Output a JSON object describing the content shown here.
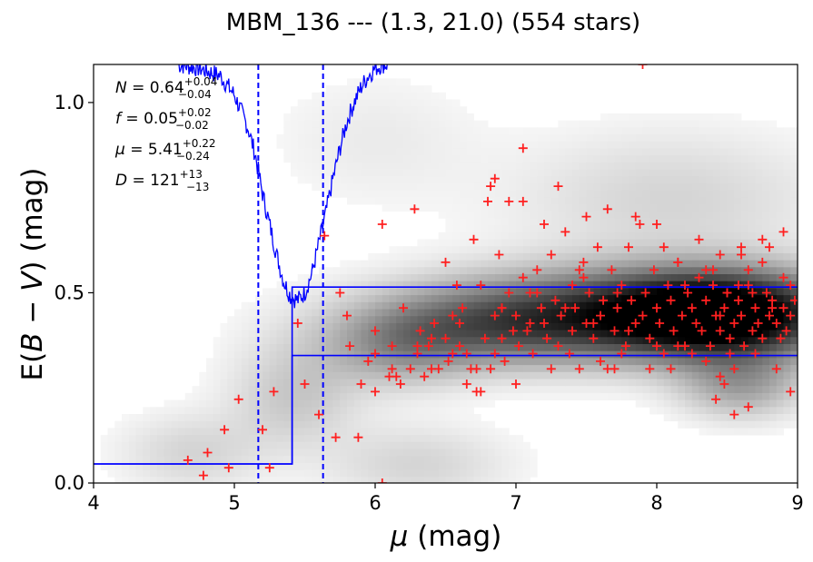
{
  "chart_data": {
    "type": "scatter",
    "title": "MBM_136 --- (1.3, 21.0) (554 stars)",
    "xlabel": {
      "pre": "",
      "italic": "μ",
      "post": " (mag)"
    },
    "ylabel": {
      "pre": "E(",
      "italic1": "B",
      "mid": " − ",
      "italic2": "V",
      "post": ") (mag)"
    },
    "xlim": [
      4,
      9
    ],
    "ylim": [
      0,
      1.1
    ],
    "xticks": [
      {
        "value": 4,
        "label": "4"
      },
      {
        "value": 5,
        "label": "5"
      },
      {
        "value": 6,
        "label": "6"
      },
      {
        "value": 7,
        "label": "7"
      },
      {
        "value": 8,
        "label": "8"
      },
      {
        "value": 9,
        "label": "9"
      }
    ],
    "yticks": [
      {
        "value": 0.0,
        "label": "0.0"
      },
      {
        "value": 0.5,
        "label": "0.5"
      },
      {
        "value": 1.0,
        "label": "1.0"
      }
    ],
    "grid": false,
    "annotations": [
      {
        "name": "N",
        "label": "N",
        "eq": " = ",
        "value": "0.64",
        "upper": "+0.04",
        "lower": "−0.04"
      },
      {
        "name": "f",
        "label": "f",
        "eq": " = ",
        "value": "0.05",
        "upper": "+0.02",
        "lower": "−0.02"
      },
      {
        "name": "mu",
        "label": "μ",
        "eq": " = ",
        "value": "5.41",
        "upper": "+0.22",
        "lower": "−0.24"
      },
      {
        "name": "D",
        "label": "D",
        "eq": " = ",
        "value": "121",
        "upper": "+13",
        "lower": "−13"
      }
    ],
    "vertical_dashed_lines": [
      5.17,
      5.63
    ],
    "colors": {
      "stars": "#ff2020",
      "model": "#0000ff",
      "density": "#000000"
    },
    "density_blobs": [
      {
        "x": 8.45,
        "y": 0.44,
        "sx": 0.55,
        "sy": 0.075,
        "w": 1.0
      },
      {
        "x": 7.8,
        "y": 0.45,
        "sx": 0.9,
        "sy": 0.08,
        "w": 0.55
      },
      {
        "x": 6.9,
        "y": 0.41,
        "sx": 0.6,
        "sy": 0.07,
        "w": 0.42
      },
      {
        "x": 6.2,
        "y": 0.36,
        "sx": 0.35,
        "sy": 0.07,
        "w": 0.28
      },
      {
        "x": 8.6,
        "y": 0.26,
        "sx": 0.3,
        "sy": 0.06,
        "w": 0.3
      },
      {
        "x": 8.1,
        "y": 0.75,
        "sx": 0.75,
        "sy": 0.12,
        "w": 0.12
      },
      {
        "x": 5.5,
        "y": 0.3,
        "sx": 0.35,
        "sy": 0.1,
        "w": 0.1
      },
      {
        "x": 4.7,
        "y": 0.08,
        "sx": 0.35,
        "sy": 0.07,
        "w": 0.12
      },
      {
        "x": 6.3,
        "y": 0.05,
        "sx": 0.45,
        "sy": 0.07,
        "w": 0.12
      },
      {
        "x": 5.4,
        "y": 0.2,
        "sx": 0.3,
        "sy": 0.08,
        "w": 0.1
      },
      {
        "x": 6.0,
        "y": 0.9,
        "sx": 0.5,
        "sy": 0.12,
        "w": 0.05
      }
    ],
    "model_step": {
      "x": [
        4.0,
        5.41,
        5.41,
        9.0
      ],
      "lower": [
        0.05,
        0.05,
        0.335,
        0.335
      ],
      "upper": [
        0.05,
        0.05,
        0.515,
        0.515
      ]
    },
    "model_curve": {
      "x": [
        4.6,
        4.75,
        4.9,
        5.0,
        5.1,
        5.15,
        5.2,
        5.25,
        5.3,
        5.35,
        5.4,
        5.45,
        5.5,
        5.55,
        5.6,
        5.65,
        5.7,
        5.75,
        5.8,
        5.85,
        5.9,
        5.95,
        6.0,
        6.05,
        6.1
      ],
      "y": [
        1.1,
        1.09,
        1.07,
        1.02,
        0.93,
        0.86,
        0.76,
        0.68,
        0.6,
        0.53,
        0.49,
        0.48,
        0.5,
        0.55,
        0.63,
        0.71,
        0.8,
        0.88,
        0.95,
        1.0,
        1.04,
        1.07,
        1.09,
        1.1,
        1.1
      ]
    },
    "stars": {
      "x": [
        4.67,
        4.78,
        4.81,
        4.93,
        4.96,
        5.03,
        5.2,
        5.25,
        5.28,
        5.45,
        5.5,
        5.6,
        5.64,
        5.72,
        5.75,
        5.8,
        5.82,
        5.88,
        5.9,
        6.0,
        6.0,
        6.0,
        6.05,
        6.12,
        6.12,
        6.15,
        6.18,
        6.2,
        6.25,
        6.28,
        6.3,
        6.32,
        6.35,
        6.38,
        6.4,
        6.42,
        6.45,
        6.5,
        6.5,
        6.52,
        6.55,
        6.58,
        6.6,
        6.62,
        6.65,
        6.68,
        6.7,
        6.72,
        6.75,
        6.75,
        6.78,
        6.8,
        6.82,
        6.85,
        6.85,
        6.88,
        6.9,
        6.9,
        6.92,
        6.95,
        6.98,
        7.0,
        7.02,
        7.05,
        7.05,
        7.08,
        7.1,
        7.12,
        7.15,
        7.18,
        7.2,
        7.22,
        7.25,
        7.28,
        7.3,
        7.32,
        7.35,
        7.38,
        7.4,
        7.42,
        7.45,
        7.48,
        7.5,
        7.52,
        7.55,
        7.58,
        7.6,
        7.62,
        7.65,
        7.68,
        7.7,
        7.72,
        7.75,
        7.78,
        7.8,
        7.82,
        7.85,
        7.88,
        7.9,
        7.92,
        7.95,
        7.98,
        8.0,
        8.02,
        8.05,
        8.08,
        8.1,
        8.12,
        8.15,
        8.18,
        8.2,
        8.22,
        8.25,
        8.28,
        8.3,
        8.32,
        8.35,
        8.38,
        8.4,
        8.42,
        8.45,
        8.48,
        8.5,
        8.52,
        8.55,
        8.58,
        8.6,
        8.62,
        8.65,
        8.68,
        8.7,
        8.72,
        8.75,
        8.78,
        8.8,
        8.82,
        8.85,
        8.88,
        8.9,
        8.92,
        8.95,
        8.98,
        7.2,
        7.3,
        7.5,
        7.65,
        7.85,
        8.0,
        8.15,
        8.3,
        8.45,
        8.6,
        8.75,
        8.9,
        8.55,
        8.65,
        8.42,
        8.48,
        7.9,
        6.85,
        6.95,
        7.05,
        6.82,
        6.6,
        6.4,
        6.05,
        7.95,
        8.35,
        8.45,
        8.55,
        8.7,
        8.85,
        8.95,
        7.15,
        7.4,
        7.6,
        7.75,
        8.1,
        8.25,
        6.72,
        6.55,
        6.3,
        6.1,
        5.95,
        8.05,
        8.4,
        8.6,
        8.8,
        7.0,
        7.25,
        7.45,
        7.7,
        8.2,
        8.5,
        8.65,
        8.75,
        8.9,
        6.65,
        6.9,
        7.35,
        7.55,
        7.8,
        8.0,
        8.35,
        8.52,
        8.68,
        8.82,
        8.95,
        7.1,
        7.48,
        7.72,
        8.15,
        8.45,
        8.58
      ],
      "y": [
        0.06,
        0.02,
        0.08,
        0.14,
        0.04,
        0.22,
        0.14,
        0.04,
        0.24,
        0.42,
        0.26,
        0.18,
        0.65,
        0.12,
        0.5,
        0.44,
        0.36,
        0.12,
        0.26,
        0.4,
        0.34,
        0.24,
        0.0,
        0.3,
        0.36,
        0.28,
        0.26,
        0.46,
        0.3,
        0.72,
        0.34,
        0.4,
        0.28,
        0.36,
        0.3,
        0.42,
        0.3,
        0.38,
        0.58,
        0.32,
        0.44,
        0.52,
        0.36,
        0.46,
        0.34,
        0.3,
        0.64,
        0.3,
        0.52,
        0.24,
        0.38,
        0.74,
        0.3,
        0.44,
        0.34,
        0.6,
        0.46,
        0.38,
        0.32,
        0.5,
        0.4,
        0.44,
        0.36,
        0.88,
        0.54,
        0.4,
        0.5,
        0.34,
        0.56,
        0.46,
        0.42,
        0.38,
        0.6,
        0.48,
        0.36,
        0.44,
        0.66,
        0.34,
        0.52,
        0.46,
        0.3,
        0.58,
        0.42,
        0.5,
        0.38,
        0.62,
        0.44,
        0.48,
        0.3,
        0.56,
        0.4,
        0.46,
        0.52,
        0.36,
        0.62,
        0.48,
        0.42,
        0.68,
        0.44,
        0.5,
        0.38,
        0.56,
        0.46,
        0.42,
        0.34,
        0.52,
        0.48,
        0.4,
        0.58,
        0.44,
        0.36,
        0.5,
        0.46,
        0.42,
        0.54,
        0.4,
        0.48,
        0.36,
        0.52,
        0.44,
        0.4,
        0.46,
        0.5,
        0.38,
        0.42,
        0.48,
        0.44,
        0.36,
        0.52,
        0.4,
        0.46,
        0.42,
        0.38,
        0.5,
        0.44,
        0.48,
        0.42,
        0.38,
        0.46,
        0.4,
        0.44,
        0.48,
        0.68,
        0.78,
        0.7,
        0.72,
        0.7,
        0.68,
        0.58,
        0.64,
        0.6,
        0.62,
        0.64,
        0.66,
        0.18,
        0.2,
        0.22,
        0.26,
        1.1,
        0.8,
        0.74,
        0.74,
        0.78,
        0.42,
        0.38,
        0.68,
        0.3,
        0.32,
        0.28,
        0.3,
        0.34,
        0.3,
        0.24,
        0.5,
        0.4,
        0.32,
        0.34,
        0.3,
        0.34,
        0.24,
        0.34,
        0.36,
        0.28,
        0.32,
        0.62,
        0.56,
        0.6,
        0.62,
        0.26,
        0.3,
        0.56,
        0.3,
        0.52,
        0.5,
        0.56,
        0.58,
        0.54,
        0.26,
        0.46,
        0.46,
        0.42,
        0.4,
        0.36,
        0.56,
        0.34,
        0.5,
        0.46,
        0.52,
        0.42,
        0.54,
        0.5,
        0.36,
        0.44,
        0.52
      ]
    }
  }
}
